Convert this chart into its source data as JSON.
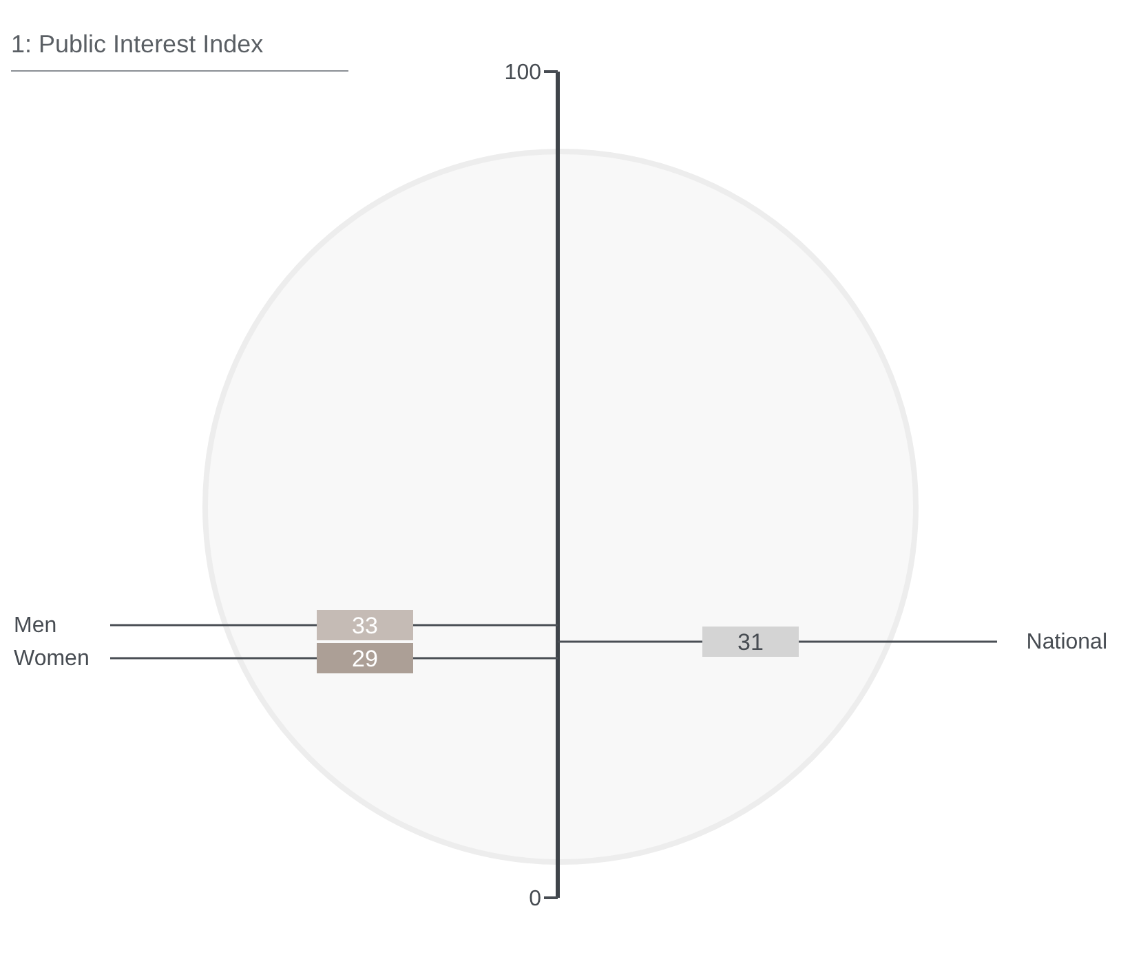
{
  "chart_data": {
    "type": "other",
    "title": "1: Public Interest Index",
    "categories": [
      "Men",
      "Women",
      "National"
    ],
    "series": [
      {
        "values": [
          33,
          29,
          null
        ],
        "colors": [
          "#c5bbb5",
          "#ac9f96",
          null
        ]
      },
      {
        "values": [
          null,
          null,
          31
        ],
        "colors": [
          null,
          null,
          "#d4d4d4"
        ]
      }
    ],
    "annotations": [
      "100",
      "0"
    ],
    "data_labels": true
  }
}
